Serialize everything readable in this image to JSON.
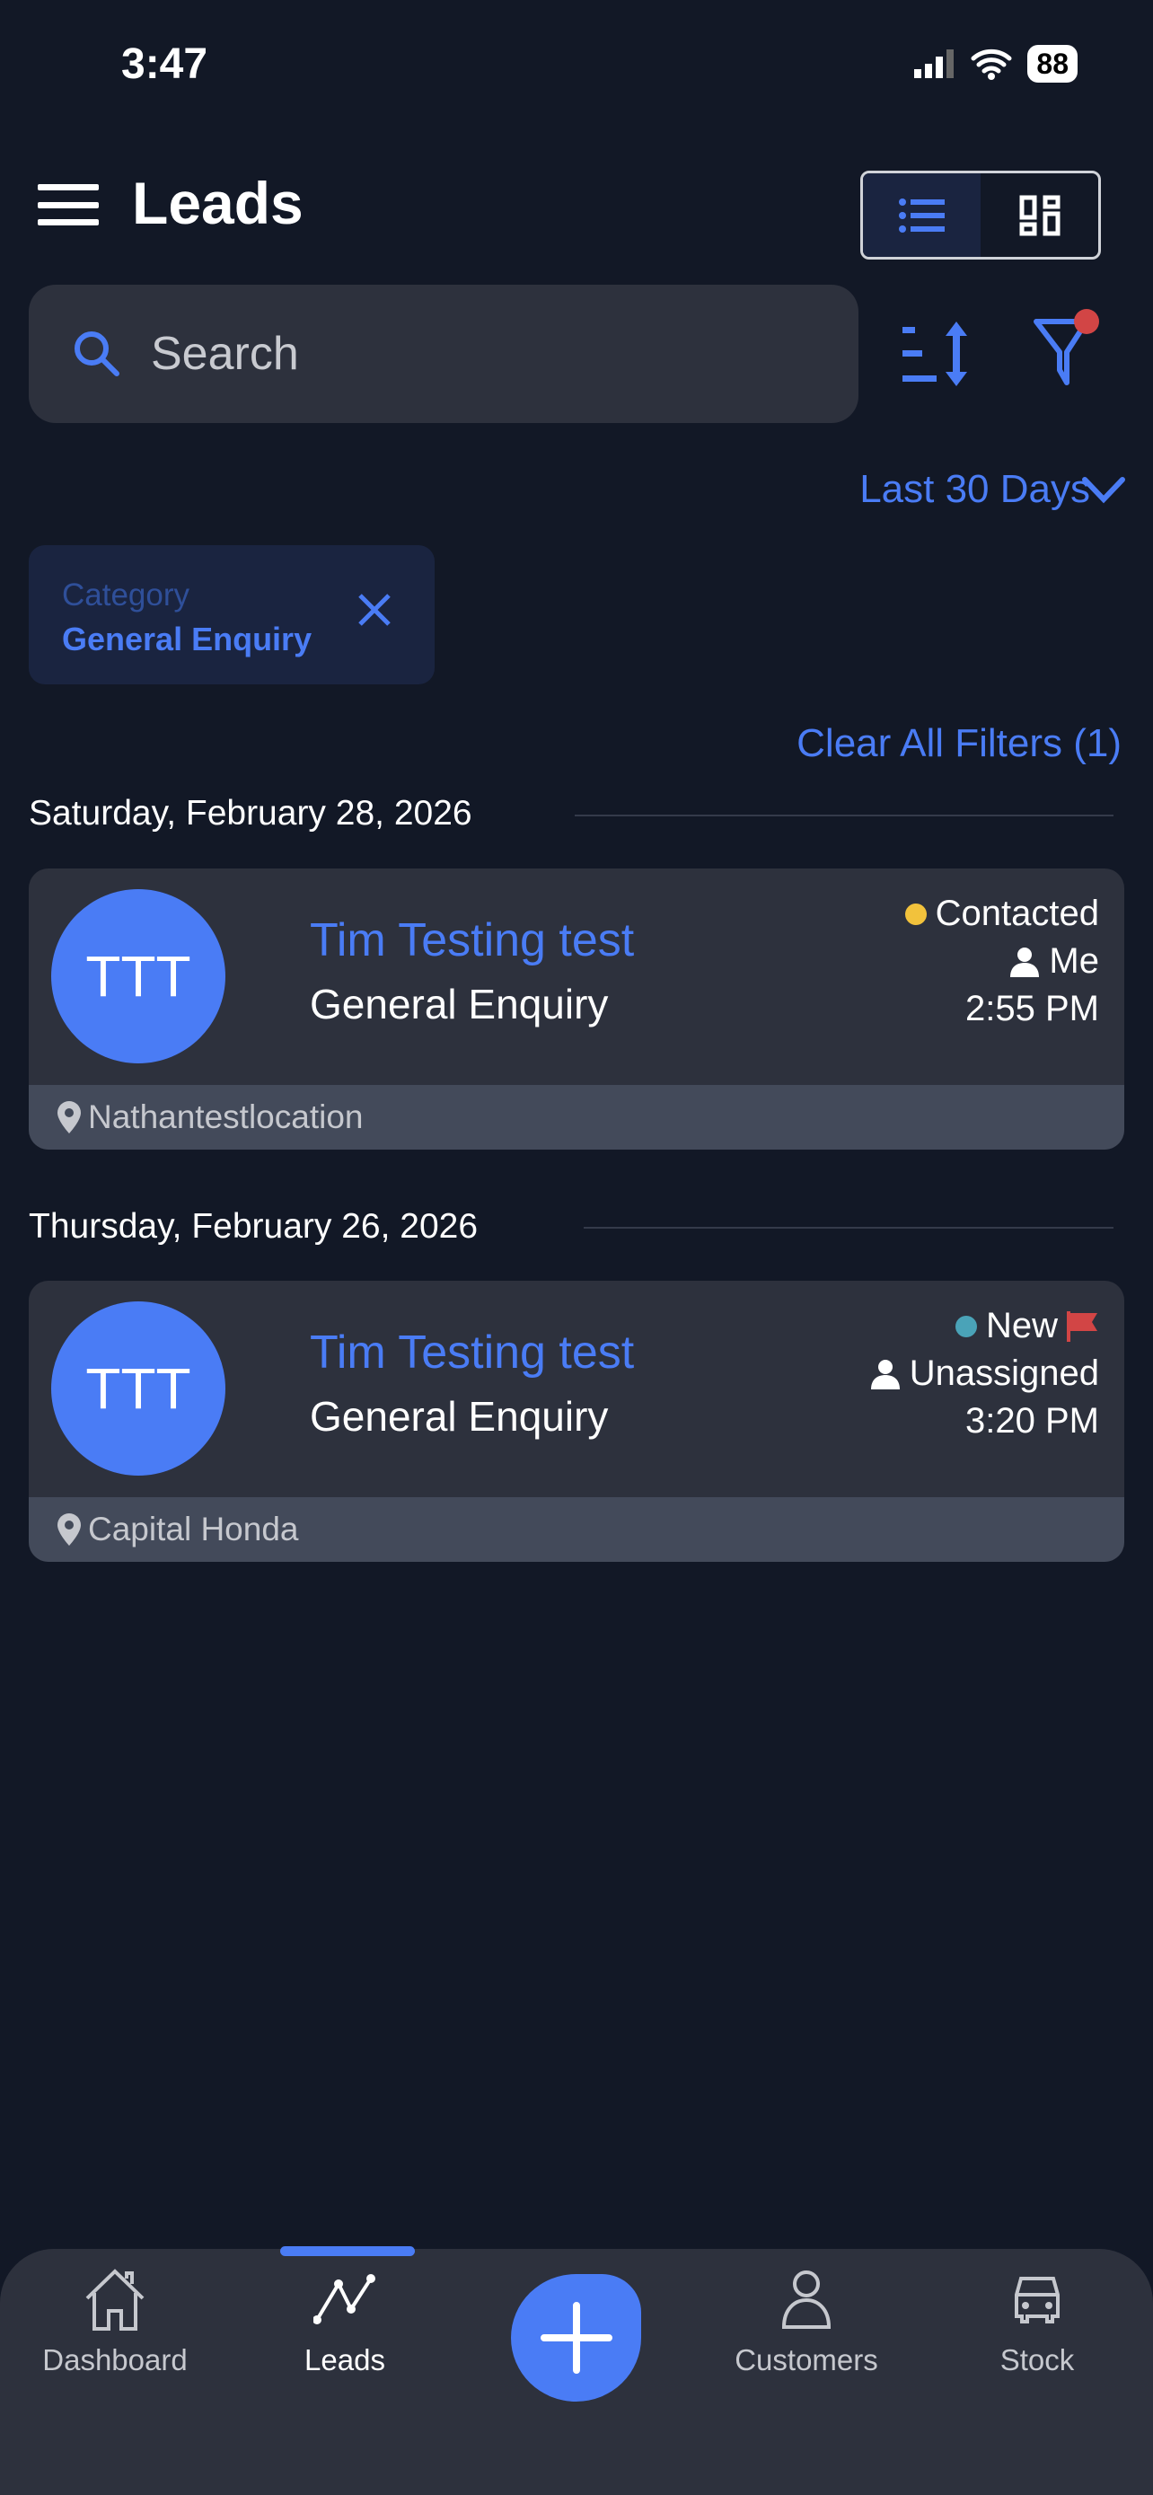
{
  "status": {
    "time": "3:47",
    "battery": "88"
  },
  "header": {
    "title": "Leads"
  },
  "search": {
    "placeholder": "Search"
  },
  "filters": {
    "period": "Last 30 Days",
    "chip": {
      "label": "Category",
      "value": "General Enquiry"
    },
    "clear": "Clear All Filters (1)"
  },
  "groups": [
    {
      "date": "Saturday, February 28, 2026",
      "lead": {
        "initials": "TTT",
        "name": "Tim Testing test",
        "category": "General Enquiry",
        "status": "Contacted",
        "status_color": "#f2c23c",
        "assignee": "Me",
        "time": "2:55 PM",
        "location": "Nathantestlocation",
        "flagged": false
      }
    },
    {
      "date": "Thursday, February 26, 2026",
      "lead": {
        "initials": "TTT",
        "name": "Tim Testing test",
        "category": "General Enquiry",
        "status": "New",
        "status_color": "#4aa3b8",
        "assignee": "Unassigned",
        "time": "3:20 PM",
        "location": "Capital Honda",
        "flagged": true
      }
    }
  ],
  "nav": {
    "items": [
      {
        "label": "Dashboard",
        "icon": "home-icon"
      },
      {
        "label": "Leads",
        "icon": "trend-icon",
        "active": true
      },
      {
        "label": "",
        "icon": "plus-icon"
      },
      {
        "label": "Customers",
        "icon": "person-icon"
      },
      {
        "label": "Stock",
        "icon": "car-icon"
      }
    ]
  },
  "colors": {
    "accent": "#4a7cf5",
    "background": "#121826",
    "card": "#2d313d",
    "badge": "#d24545"
  }
}
